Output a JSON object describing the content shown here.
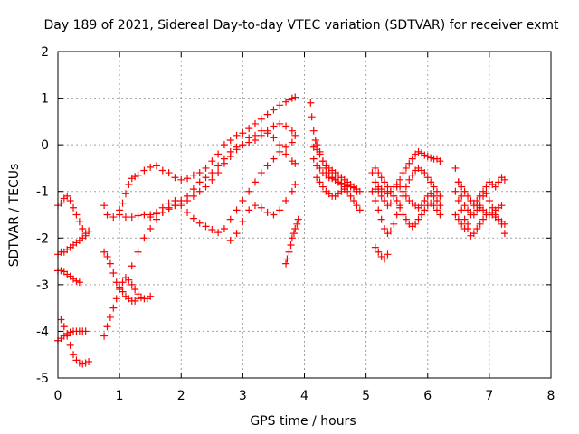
{
  "chart_data": {
    "type": "scatter",
    "title": "Day 189 of 2021, Sidereal Day-to-day VTEC variation (SDTVAR) for receiver exmt",
    "xlabel": "GPS time / hours",
    "ylabel": "SDTVAR / TECUs",
    "xlim": [
      0,
      8
    ],
    "ylim": [
      -5,
      2
    ],
    "xticks": [
      0,
      1,
      2,
      3,
      4,
      5,
      6,
      7,
      8
    ],
    "yticks": [
      -5,
      -4,
      -3,
      -2,
      -1,
      0,
      1,
      2
    ],
    "grid": true,
    "legend": "none",
    "marker": "+",
    "color": "#ff0000",
    "series": [
      {
        "x": [
          0.0,
          0.05,
          0.1,
          0.15,
          0.2,
          0.25,
          0.3,
          0.35,
          0.4,
          0.45,
          0.5
        ],
        "y": [
          -1.3,
          -1.25,
          -1.15,
          -1.1,
          -1.2,
          -1.35,
          -1.5,
          -1.65,
          -1.8,
          -1.9,
          -1.85
        ]
      },
      {
        "x": [
          0.0,
          0.05,
          0.1,
          0.15,
          0.2,
          0.25,
          0.3,
          0.35,
          0.4,
          0.45,
          0.5
        ],
        "y": [
          -2.35,
          -2.3,
          -2.3,
          -2.25,
          -2.2,
          -2.15,
          -2.1,
          -2.05,
          -2.0,
          -1.95,
          -1.85
        ]
      },
      {
        "x": [
          0.0,
          0.05,
          0.1,
          0.15,
          0.2,
          0.25,
          0.3,
          0.35
        ],
        "y": [
          -2.7,
          -2.7,
          -2.72,
          -2.78,
          -2.82,
          -2.88,
          -2.92,
          -2.95
        ]
      },
      {
        "x": [
          0.0,
          0.05,
          0.1,
          0.15,
          0.2,
          0.25,
          0.3,
          0.35,
          0.4,
          0.45
        ],
        "y": [
          -4.2,
          -4.15,
          -4.1,
          -4.05,
          -4.02,
          -4.0,
          -4.0,
          -4.0,
          -4.0,
          -4.0
        ]
      },
      {
        "x": [
          0.05,
          0.1,
          0.15,
          0.2,
          0.25,
          0.3,
          0.35,
          0.4,
          0.45,
          0.5
        ],
        "y": [
          -3.75,
          -3.9,
          -4.1,
          -4.3,
          -4.5,
          -4.62,
          -4.68,
          -4.7,
          -4.68,
          -4.65
        ]
      },
      {
        "x": [
          0.75,
          0.8,
          0.9,
          1.0,
          1.05,
          1.1,
          1.15,
          1.2,
          1.25,
          1.3
        ],
        "y": [
          -1.3,
          -1.5,
          -1.55,
          -1.4,
          -1.25,
          -1.05,
          -0.85,
          -0.72,
          -0.68,
          -0.65
        ]
      },
      {
        "x": [
          1.3,
          1.4,
          1.5,
          1.6,
          1.7,
          1.8,
          1.9,
          2.0,
          2.1,
          2.2,
          2.3,
          2.4,
          2.5,
          2.6,
          2.7,
          2.8,
          2.9,
          3.0,
          3.1,
          3.2,
          3.3,
          3.4,
          3.5,
          3.6,
          3.7,
          3.75,
          3.8,
          3.85
        ],
        "y": [
          -0.65,
          -0.55,
          -0.48,
          -0.45,
          -0.55,
          -0.6,
          -0.7,
          -0.75,
          -0.72,
          -0.65,
          -0.6,
          -0.5,
          -0.35,
          -0.2,
          0.0,
          0.1,
          0.2,
          0.25,
          0.35,
          0.45,
          0.55,
          0.65,
          0.75,
          0.85,
          0.92,
          0.96,
          1.0,
          1.02
        ]
      },
      {
        "x": [
          0.75,
          0.8,
          0.85,
          0.9,
          0.95,
          1.0,
          1.05,
          1.1,
          1.15,
          1.2,
          1.25,
          1.3,
          1.35,
          1.4,
          1.45,
          1.5
        ],
        "y": [
          -4.1,
          -3.9,
          -3.7,
          -3.5,
          -3.3,
          -3.1,
          -2.95,
          -2.85,
          -2.9,
          -3.0,
          -3.1,
          -3.2,
          -3.28,
          -3.3,
          -3.3,
          -3.25
        ]
      },
      {
        "x": [
          0.75,
          0.8,
          0.85,
          0.9,
          0.95,
          1.0,
          1.05,
          1.1,
          1.15,
          1.2,
          1.25,
          1.3
        ],
        "y": [
          -2.3,
          -2.4,
          -2.55,
          -2.75,
          -2.95,
          -3.05,
          -3.15,
          -3.25,
          -3.3,
          -3.35,
          -3.35,
          -3.3
        ]
      },
      {
        "x": [
          1.0,
          1.1,
          1.2,
          1.3,
          1.4,
          1.5,
          1.6,
          1.7,
          1.8,
          1.9,
          2.0,
          2.1,
          2.2,
          2.3,
          2.4,
          2.5,
          2.6,
          2.7,
          2.8,
          2.9,
          3.0,
          3.1,
          3.2,
          3.3,
          3.4,
          3.5,
          3.6,
          3.7,
          3.8,
          3.85
        ],
        "y": [
          -1.5,
          -1.55,
          -1.55,
          -1.52,
          -1.5,
          -1.5,
          -1.48,
          -1.45,
          -1.38,
          -1.3,
          -1.2,
          -1.1,
          -0.95,
          -0.8,
          -0.7,
          -0.6,
          -0.45,
          -0.3,
          -0.15,
          -0.05,
          0.0,
          0.05,
          0.1,
          0.2,
          0.3,
          0.4,
          0.45,
          0.4,
          0.3,
          0.2
        ]
      },
      {
        "x": [
          1.2,
          1.3,
          1.4,
          1.5,
          1.6,
          1.7,
          1.8,
          1.9,
          2.0,
          2.1,
          2.2,
          2.3,
          2.4,
          2.5,
          2.6,
          2.7,
          2.8,
          2.9,
          3.0,
          3.1,
          3.2,
          3.3,
          3.4,
          3.5,
          3.6,
          3.7,
          3.8,
          3.85
        ],
        "y": [
          -2.6,
          -2.3,
          -2.0,
          -1.8,
          -1.6,
          -1.45,
          -1.35,
          -1.3,
          -1.25,
          -1.2,
          -1.1,
          -1.0,
          -0.9,
          -0.75,
          -0.6,
          -0.4,
          -0.25,
          -0.1,
          0.0,
          0.15,
          0.2,
          0.3,
          0.25,
          0.15,
          0.0,
          -0.2,
          -0.35,
          -0.4
        ]
      },
      {
        "x": [
          1.5,
          1.6,
          1.7,
          1.8,
          1.9,
          2.0,
          2.1,
          2.2,
          2.3,
          2.4,
          2.5,
          2.6,
          2.7,
          2.8,
          2.9,
          3.0,
          3.1,
          3.2,
          3.3,
          3.4,
          3.5,
          3.6,
          3.7,
          3.8
        ],
        "y": [
          -1.55,
          -1.45,
          -1.35,
          -1.25,
          -1.2,
          -1.3,
          -1.45,
          -1.58,
          -1.68,
          -1.75,
          -1.82,
          -1.88,
          -1.8,
          -1.6,
          -1.4,
          -1.2,
          -1.0,
          -0.8,
          -0.6,
          -0.45,
          -0.3,
          -0.15,
          -0.05,
          0.05
        ]
      },
      {
        "x": [
          2.8,
          2.9,
          3.0,
          3.1,
          3.2,
          3.3,
          3.4,
          3.5,
          3.6,
          3.7,
          3.8,
          3.85
        ],
        "y": [
          -2.05,
          -1.9,
          -1.65,
          -1.4,
          -1.3,
          -1.35,
          -1.45,
          -1.5,
          -1.4,
          -1.2,
          -1.0,
          -0.85
        ]
      },
      {
        "x": [
          3.7,
          3.72,
          3.75,
          3.78,
          3.8,
          3.83,
          3.85,
          3.88,
          3.9
        ],
        "y": [
          -2.55,
          -2.45,
          -2.3,
          -2.15,
          -2.0,
          -1.9,
          -1.8,
          -1.7,
          -1.6
        ]
      },
      {
        "x": [
          4.1,
          4.12,
          4.15,
          4.18,
          4.2,
          4.25,
          4.3,
          4.35,
          4.4,
          4.45,
          4.5,
          4.55,
          4.6,
          4.65,
          4.7,
          4.75,
          4.8,
          4.85,
          4.9
        ],
        "y": [
          0.9,
          0.6,
          0.3,
          0.1,
          0.0,
          -0.15,
          -0.35,
          -0.5,
          -0.6,
          -0.7,
          -0.75,
          -0.8,
          -0.85,
          -0.9,
          -1.0,
          -1.1,
          -1.2,
          -1.3,
          -1.4
        ]
      },
      {
        "x": [
          4.15,
          4.2,
          4.25,
          4.3,
          4.35,
          4.4,
          4.45,
          4.5,
          4.55,
          4.6,
          4.65,
          4.7,
          4.75,
          4.8,
          4.85,
          4.9
        ],
        "y": [
          -0.3,
          -0.45,
          -0.5,
          -0.6,
          -0.65,
          -0.7,
          -0.72,
          -0.75,
          -0.8,
          -0.82,
          -0.85,
          -0.88,
          -0.9,
          -0.92,
          -0.95,
          -1.0
        ]
      },
      {
        "x": [
          4.15,
          4.2,
          4.25,
          4.3,
          4.35,
          4.4,
          4.45,
          4.5,
          4.55,
          4.6,
          4.65,
          4.7,
          4.75,
          4.8,
          4.85
        ],
        "y": [
          -0.05,
          -0.1,
          -0.2,
          -0.35,
          -0.45,
          -0.5,
          -0.55,
          -0.6,
          -0.65,
          -0.7,
          -0.75,
          -0.8,
          -0.85,
          -0.9,
          -1.0
        ]
      },
      {
        "x": [
          4.2,
          4.25,
          4.3,
          4.35,
          4.4,
          4.45,
          4.5,
          4.55,
          4.6,
          4.65
        ],
        "y": [
          -0.7,
          -0.8,
          -0.9,
          -1.0,
          -1.05,
          -1.1,
          -1.1,
          -1.05,
          -1.0,
          -0.95
        ]
      },
      {
        "x": [
          5.1,
          5.15,
          5.2,
          5.25,
          5.3,
          5.35,
          5.4,
          5.45,
          5.5,
          5.55,
          5.6,
          5.65,
          5.7,
          5.75,
          5.8,
          5.85,
          5.9,
          5.95,
          6.0,
          6.05,
          6.1,
          6.15,
          6.2
        ],
        "y": [
          -0.6,
          -0.8,
          -1.0,
          -1.1,
          -1.2,
          -1.3,
          -1.25,
          -1.1,
          -0.9,
          -0.75,
          -0.6,
          -0.5,
          -0.4,
          -0.3,
          -0.2,
          -0.15,
          -0.18,
          -0.22,
          -0.25,
          -0.28,
          -0.3,
          -0.3,
          -0.35
        ]
      },
      {
        "x": [
          5.1,
          5.15,
          5.2,
          5.25,
          5.3,
          5.35,
          5.4,
          5.45,
          5.5,
          5.55,
          5.6,
          5.65,
          5.7,
          5.75,
          5.8,
          5.85,
          5.9,
          5.95,
          6.0,
          6.05,
          6.1,
          6.15,
          6.2
        ],
        "y": [
          -1.0,
          -0.95,
          -0.9,
          -0.95,
          -1.0,
          -1.05,
          -1.0,
          -0.9,
          -0.85,
          -0.9,
          -1.0,
          -1.1,
          -1.2,
          -1.25,
          -1.3,
          -1.35,
          -1.3,
          -1.2,
          -1.1,
          -1.05,
          -1.1,
          -1.2,
          -1.3
        ]
      },
      {
        "x": [
          5.15,
          5.2,
          5.25,
          5.3,
          5.35,
          5.4,
          5.45,
          5.5,
          5.55,
          5.6,
          5.65,
          5.7,
          5.75,
          5.8,
          5.85,
          5.9,
          5.95,
          6.0,
          6.05,
          6.1,
          6.15,
          6.2
        ],
        "y": [
          -0.5,
          -0.6,
          -0.7,
          -0.8,
          -0.9,
          -1.0,
          -1.1,
          -1.2,
          -1.35,
          -1.5,
          -1.6,
          -1.7,
          -1.75,
          -1.7,
          -1.6,
          -1.5,
          -1.4,
          -1.3,
          -1.25,
          -1.3,
          -1.4,
          -1.5
        ]
      },
      {
        "x": [
          5.15,
          5.2,
          5.25,
          5.3,
          5.35,
          5.4,
          5.45,
          5.5,
          5.55,
          5.6,
          5.65,
          5.7,
          5.75,
          5.8,
          5.85,
          5.9,
          5.95,
          6.0,
          6.05,
          6.1,
          6.15,
          6.2
        ],
        "y": [
          -1.2,
          -1.4,
          -1.6,
          -1.8,
          -1.9,
          -1.85,
          -1.7,
          -1.5,
          -1.3,
          -1.1,
          -0.9,
          -0.75,
          -0.65,
          -0.55,
          -0.5,
          -0.55,
          -0.6,
          -0.7,
          -0.8,
          -0.9,
          -1.0,
          -1.1
        ]
      },
      {
        "x": [
          5.15,
          5.2,
          5.25,
          5.3,
          5.35
        ],
        "y": [
          -2.2,
          -2.3,
          -2.4,
          -2.45,
          -2.35
        ]
      },
      {
        "x": [
          6.45,
          6.5,
          6.55,
          6.6,
          6.65,
          6.7,
          6.75,
          6.8,
          6.85,
          6.9,
          6.95,
          7.0,
          7.05,
          7.1,
          7.15,
          7.2,
          7.25
        ],
        "y": [
          -0.5,
          -0.8,
          -1.1,
          -1.3,
          -1.4,
          -1.45,
          -1.5,
          -1.4,
          -1.3,
          -1.1,
          -0.9,
          -0.8,
          -0.85,
          -0.9,
          -0.8,
          -0.7,
          -0.75
        ]
      },
      {
        "x": [
          6.45,
          6.5,
          6.55,
          6.6,
          6.65,
          6.7,
          6.75,
          6.8,
          6.85,
          6.9,
          6.95,
          7.0,
          7.05,
          7.1,
          7.15,
          7.2,
          7.25
        ],
        "y": [
          -1.0,
          -1.2,
          -1.4,
          -1.6,
          -1.8,
          -1.95,
          -1.9,
          -1.8,
          -1.7,
          -1.6,
          -1.5,
          -1.45,
          -1.5,
          -1.55,
          -1.6,
          -1.65,
          -1.7
        ]
      },
      {
        "x": [
          6.45,
          6.5,
          6.55,
          6.6,
          6.65,
          6.7,
          6.75,
          6.8,
          6.85,
          6.9,
          6.95,
          7.0,
          7.05,
          7.1,
          7.15,
          7.2,
          7.25
        ],
        "y": [
          -1.5,
          -1.6,
          -1.7,
          -1.8,
          -1.7,
          -1.5,
          -1.3,
          -1.2,
          -1.1,
          -1.0,
          -1.05,
          -1.2,
          -1.35,
          -1.5,
          -1.6,
          -1.7,
          -1.9
        ]
      },
      {
        "x": [
          6.5,
          6.55,
          6.6,
          6.65,
          6.7,
          6.75,
          6.8,
          6.85,
          6.9,
          6.95,
          7.0,
          7.05,
          7.1,
          7.15,
          7.2
        ],
        "y": [
          -0.8,
          -0.9,
          -1.0,
          -1.1,
          -1.2,
          -1.25,
          -1.3,
          -1.35,
          -1.4,
          -1.45,
          -1.5,
          -1.45,
          -1.4,
          -1.35,
          -1.3
        ]
      }
    ]
  }
}
